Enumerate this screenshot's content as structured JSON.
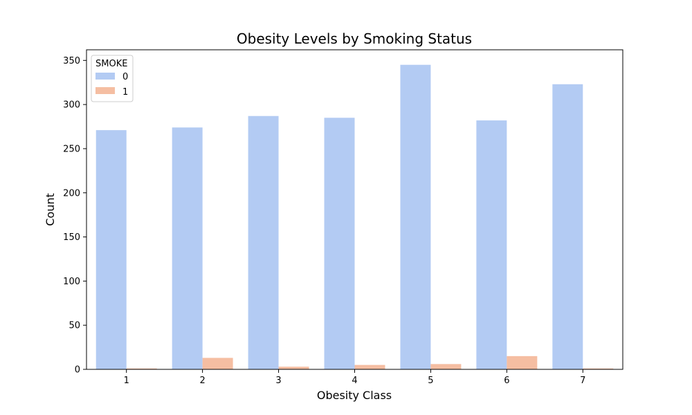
{
  "chart_data": {
    "type": "bar",
    "title": "Obesity Levels by Smoking Status",
    "xlabel": "Obesity Class",
    "ylabel": "Count",
    "categories": [
      "1",
      "2",
      "3",
      "4",
      "5",
      "6",
      "7"
    ],
    "ylim": [
      0,
      362
    ],
    "yticks": [
      "0",
      "50",
      "100",
      "150",
      "200",
      "250",
      "300",
      "350"
    ],
    "grid": false,
    "legend": {
      "title": "SMOKE",
      "placement": "top-left"
    },
    "series": [
      {
        "name": "0",
        "color": "#b3cbf3",
        "values": [
          271,
          274,
          287,
          285,
          345,
          282,
          323
        ]
      },
      {
        "name": "1",
        "color": "#f5bea2",
        "values": [
          1,
          13,
          3,
          5,
          6,
          15,
          1
        ]
      }
    ]
  }
}
